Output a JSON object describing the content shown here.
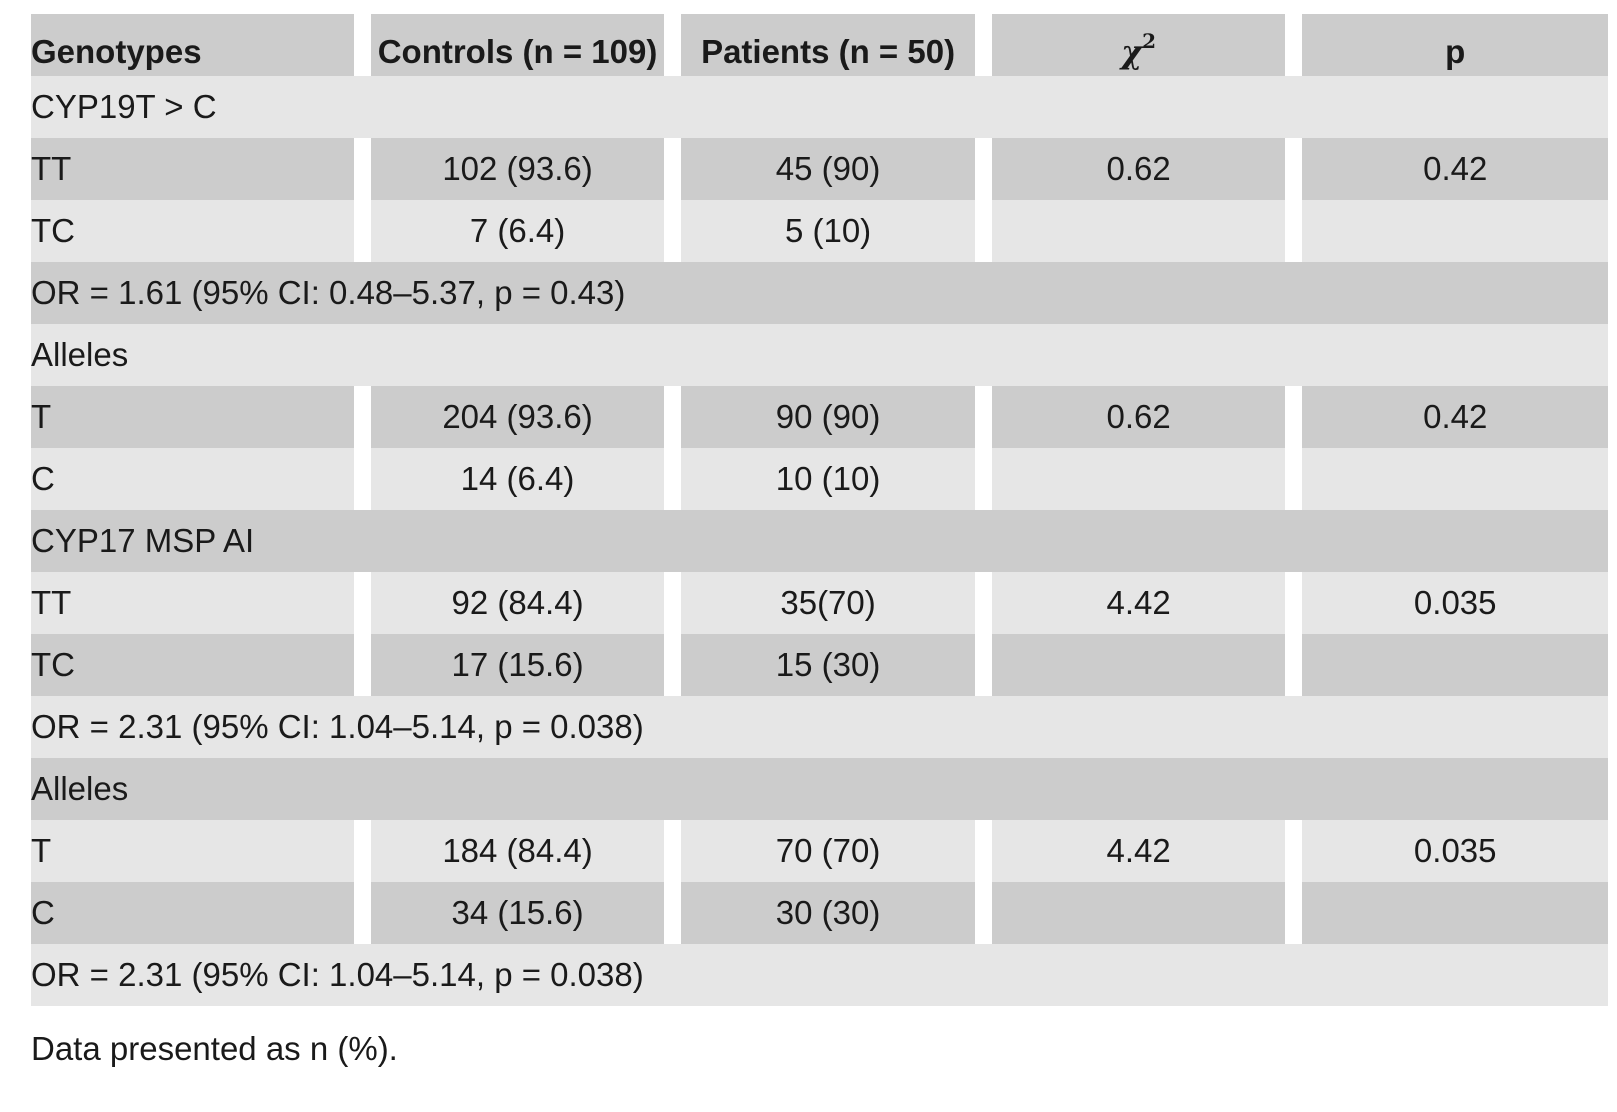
{
  "header": {
    "col0": "Genotypes",
    "col1": "Controls (n = 109)",
    "col2": "Patients (n = 50)",
    "col3_symbol": "χ",
    "col3_sup": "2",
    "col4": "p"
  },
  "rows": [
    {
      "type": "section",
      "label": "CYP19T > C"
    },
    {
      "type": "data",
      "label": "TT",
      "controls": "102 (93.6)",
      "patients": "45 (90)",
      "chi2": "0.62",
      "p": "0.42"
    },
    {
      "type": "data",
      "label": "TC",
      "controls": "7 (6.4)",
      "patients": "5 (10)",
      "chi2": "",
      "p": ""
    },
    {
      "type": "section",
      "label": "OR = 1.61 (95% CI: 0.48–5.37, p = 0.43)"
    },
    {
      "type": "section",
      "label": "Alleles"
    },
    {
      "type": "data",
      "label": "T",
      "controls": "204 (93.6)",
      "patients": "90 (90)",
      "chi2": "0.62",
      "p": "0.42"
    },
    {
      "type": "data",
      "label": "C",
      "controls": "14 (6.4)",
      "patients": "10 (10)",
      "chi2": "",
      "p": ""
    },
    {
      "type": "section",
      "label": "CYP17 MSP AI"
    },
    {
      "type": "data",
      "label": "TT",
      "controls": "92 (84.4)",
      "patients": "35(70)",
      "chi2": "4.42",
      "p": "0.035"
    },
    {
      "type": "data",
      "label": "TC",
      "controls": "17 (15.6)",
      "patients": "15 (30)",
      "chi2": "",
      "p": ""
    },
    {
      "type": "section",
      "label": "OR = 2.31 (95% CI: 1.04–5.14, p = 0.038)"
    },
    {
      "type": "section",
      "label": "Alleles"
    },
    {
      "type": "data",
      "label": "T",
      "controls": "184 (84.4)",
      "patients": "70 (70)",
      "chi2": "4.42",
      "p": "0.035"
    },
    {
      "type": "data",
      "label": "C",
      "controls": "34 (15.6)",
      "patients": "30 (30)",
      "chi2": "",
      "p": ""
    },
    {
      "type": "section",
      "label": "OR = 2.31 (95% CI: 1.04–5.14, p = 0.038)"
    }
  ],
  "footnote": "Data presented as n (%)."
}
